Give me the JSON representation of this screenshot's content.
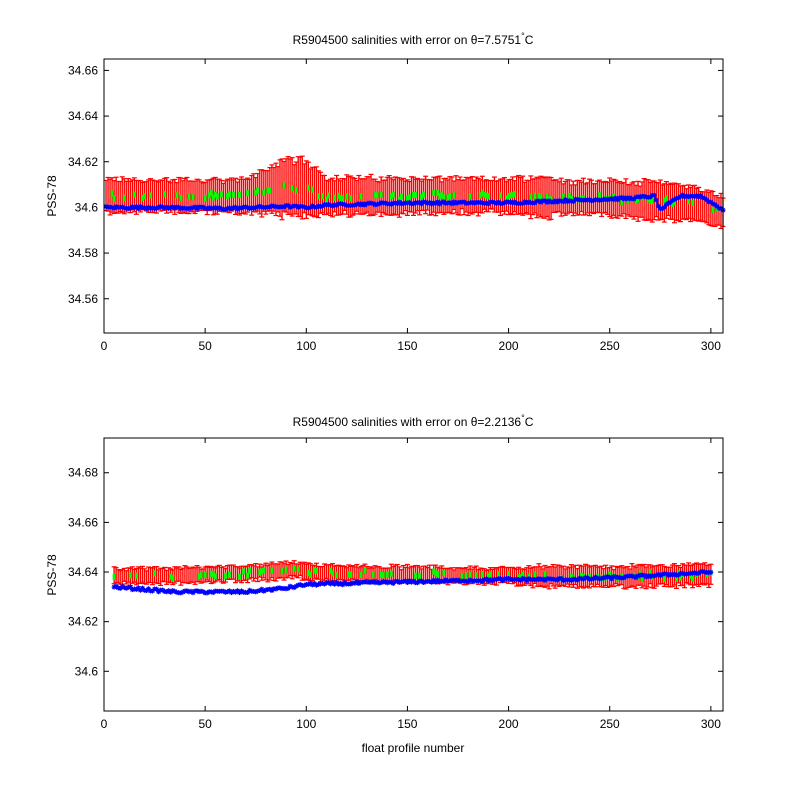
{
  "colors": {
    "error_bar": "#ff0000",
    "mapped_estimate": "#00ff00",
    "float_salinity": "#0000ff",
    "axes": "#000000"
  },
  "chart_data": [
    {
      "type": "scatter",
      "title": "R5904500 salinities with error on θ=7.5751°C",
      "title_parts": [
        "R5904500 salinities with error on θ=7.5751",
        "°",
        "C"
      ],
      "xlabel": "",
      "ylabel": "PSS-78",
      "xlim": [
        0,
        306
      ],
      "ylim": [
        34.545,
        34.665
      ],
      "xticks": [
        0,
        50,
        100,
        150,
        200,
        250,
        300
      ],
      "yticks": [
        34.56,
        34.58,
        34.6,
        34.62,
        34.64,
        34.66
      ],
      "ytick_labels": [
        "34.56",
        "34.58",
        "34.6",
        "34.62",
        "34.64",
        "34.66"
      ],
      "grid": false,
      "series": [
        {
          "kind": "mapped_salinity_with_error",
          "x_range": [
            1,
            306
          ],
          "center_knots": [
            [
              1,
              34.605
            ],
            [
              40,
              34.605
            ],
            [
              70,
              34.605
            ],
            [
              80,
              34.607
            ],
            [
              90,
              34.609
            ],
            [
              100,
              34.608
            ],
            [
              110,
              34.605
            ],
            [
              150,
              34.605
            ],
            [
              200,
              34.605
            ],
            [
              250,
              34.604
            ],
            [
              270,
              34.603
            ],
            [
              290,
              34.602
            ],
            [
              306,
              34.598
            ]
          ],
          "error_knots": [
            [
              1,
              0.007
            ],
            [
              70,
              0.007
            ],
            [
              80,
              0.01
            ],
            [
              90,
              0.012
            ],
            [
              100,
              0.012
            ],
            [
              110,
              0.008
            ],
            [
              200,
              0.007
            ],
            [
              215,
              0.009
            ],
            [
              230,
              0.007
            ],
            [
              270,
              0.008
            ],
            [
              300,
              0.007
            ]
          ]
        },
        {
          "kind": "float_salinity",
          "x_range": [
            1,
            306
          ],
          "knots": [
            [
              1,
              34.6
            ],
            [
              30,
              34.6
            ],
            [
              60,
              34.5995
            ],
            [
              75,
              34.6
            ],
            [
              90,
              34.6005
            ],
            [
              100,
              34.6
            ],
            [
              110,
              34.601
            ],
            [
              150,
              34.602
            ],
            [
              200,
              34.602
            ],
            [
              230,
              34.603
            ],
            [
              260,
              34.604
            ],
            [
              272,
              34.605
            ],
            [
              275,
              34.599
            ],
            [
              285,
              34.605
            ],
            [
              295,
              34.605
            ],
            [
              306,
              34.599
            ]
          ]
        }
      ]
    },
    {
      "type": "scatter",
      "title": "R5904500 salinities with error on θ=2.2136°C",
      "title_parts": [
        "R5904500 salinities with error on θ=2.2136",
        "°",
        "C"
      ],
      "xlabel": "float profile number",
      "ylabel": "PSS-78",
      "xlim": [
        0,
        306
      ],
      "ylim": [
        34.584,
        34.694
      ],
      "xticks": [
        0,
        50,
        100,
        150,
        200,
        250,
        300
      ],
      "yticks": [
        34.6,
        34.62,
        34.64,
        34.66,
        34.68
      ],
      "ytick_labels": [
        "34.6",
        "34.62",
        "34.64",
        "34.66",
        "34.68"
      ],
      "grid": false,
      "series": [
        {
          "kind": "mapped_salinity_with_error",
          "x_range": [
            5,
            300
          ],
          "center_knots": [
            [
              5,
              34.6385
            ],
            [
              40,
              34.6385
            ],
            [
              80,
              34.64
            ],
            [
              95,
              34.641
            ],
            [
              110,
              34.6395
            ],
            [
              150,
              34.639
            ],
            [
              200,
              34.6385
            ],
            [
              250,
              34.638
            ],
            [
              300,
              34.639
            ]
          ],
          "error_knots": [
            [
              5,
              0.003
            ],
            [
              200,
              0.003
            ],
            [
              215,
              0.004
            ],
            [
              300,
              0.004
            ]
          ]
        },
        {
          "kind": "float_salinity",
          "x_range": [
            5,
            300
          ],
          "knots": [
            [
              5,
              34.634
            ],
            [
              20,
              34.633
            ],
            [
              35,
              34.632
            ],
            [
              45,
              34.632
            ],
            [
              70,
              34.632
            ],
            [
              90,
              34.6335
            ],
            [
              100,
              34.635
            ],
            [
              150,
              34.636
            ],
            [
              200,
              34.637
            ],
            [
              230,
              34.637
            ],
            [
              260,
              34.638
            ],
            [
              300,
              34.64
            ]
          ]
        }
      ]
    }
  ]
}
